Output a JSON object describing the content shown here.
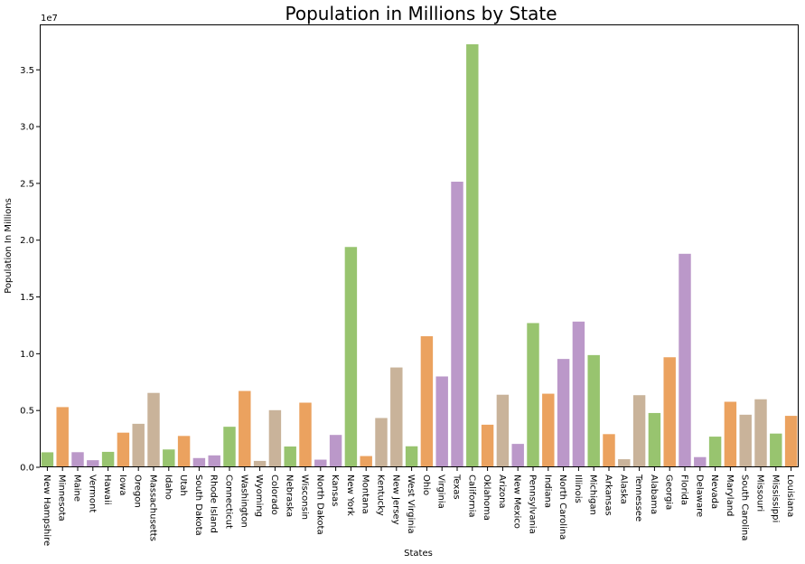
{
  "chart_data": {
    "type": "bar",
    "title": "Population in Millions by State",
    "xlabel": "States",
    "ylabel": "Population In Millions",
    "offset_label": "1e7",
    "ylim": [
      0,
      39000000
    ],
    "yticks": [
      0,
      5000000,
      10000000,
      15000000,
      20000000,
      25000000,
      30000000,
      35000000
    ],
    "ytick_labels": [
      "0.0",
      "0.5",
      "1.0",
      "1.5",
      "2.0",
      "2.5",
      "3.0",
      "3.5"
    ],
    "grid": false,
    "palette": [
      "#98c46f",
      "#eba25f",
      "#bb98c9",
      "#c9b39a"
    ],
    "categories": [
      "New Hampshire",
      "Minnesota",
      "Maine",
      "Vermont",
      "Hawaii",
      "Iowa",
      "Oregon",
      "Massachusetts",
      "Idaho",
      "Utah",
      "South Dakota",
      "Rhode Island",
      "Connecticut",
      "Washington",
      "Wyoming",
      "Colorado",
      "Nebraska",
      "Wisconsin",
      "North Dakota",
      "Kansas",
      "New York",
      "Montana",
      "Kentucky",
      "New Jersey",
      "West Virginia",
      "Ohio",
      "Virginia",
      "Texas",
      "California",
      "Oklahoma",
      "Arizona",
      "New Mexico",
      "Pennsylvania",
      "Indiana",
      "North Carolina",
      "Illinois",
      "Michigan",
      "Arkansas",
      "Alaska",
      "Tennessee",
      "Alabama",
      "Georgia",
      "Florida",
      "Delaware",
      "Nevada",
      "Maryland",
      "South Carolina",
      "Missouri",
      "Mississippi",
      "Louisiana"
    ],
    "values": [
      1320000,
      5300000,
      1330000,
      626000,
      1360000,
      3050000,
      3830000,
      6550000,
      1570000,
      2760000,
      814000,
      1050000,
      3570000,
      6720000,
      563000,
      5030000,
      1830000,
      5690000,
      672000,
      2850000,
      19400000,
      989000,
      4340000,
      8790000,
      1850000,
      11540000,
      8000000,
      25150000,
      37250000,
      3750000,
      6390000,
      2060000,
      12700000,
      6480000,
      9540000,
      12830000,
      9880000,
      2920000,
      710000,
      6350000,
      4780000,
      9690000,
      18800000,
      898000,
      2700000,
      5770000,
      4630000,
      5990000,
      2970000,
      4530000
    ],
    "colors": [
      "#98c46f",
      "#eba25f",
      "#bb98c9",
      "#bb98c9",
      "#98c46f",
      "#eba25f",
      "#c9b39a",
      "#c9b39a",
      "#98c46f",
      "#eba25f",
      "#bb98c9",
      "#bb98c9",
      "#98c46f",
      "#eba25f",
      "#c9b39a",
      "#c9b39a",
      "#98c46f",
      "#eba25f",
      "#bb98c9",
      "#bb98c9",
      "#98c46f",
      "#eba25f",
      "#c9b39a",
      "#c9b39a",
      "#98c46f",
      "#eba25f",
      "#bb98c9",
      "#bb98c9",
      "#98c46f",
      "#eba25f",
      "#c9b39a",
      "#bb98c9",
      "#98c46f",
      "#eba25f",
      "#bb98c9",
      "#bb98c9",
      "#98c46f",
      "#eba25f",
      "#c9b39a",
      "#c9b39a",
      "#98c46f",
      "#eba25f",
      "#bb98c9",
      "#bb98c9",
      "#98c46f",
      "#eba25f",
      "#c9b39a",
      "#c9b39a",
      "#98c46f",
      "#eba25f"
    ]
  }
}
